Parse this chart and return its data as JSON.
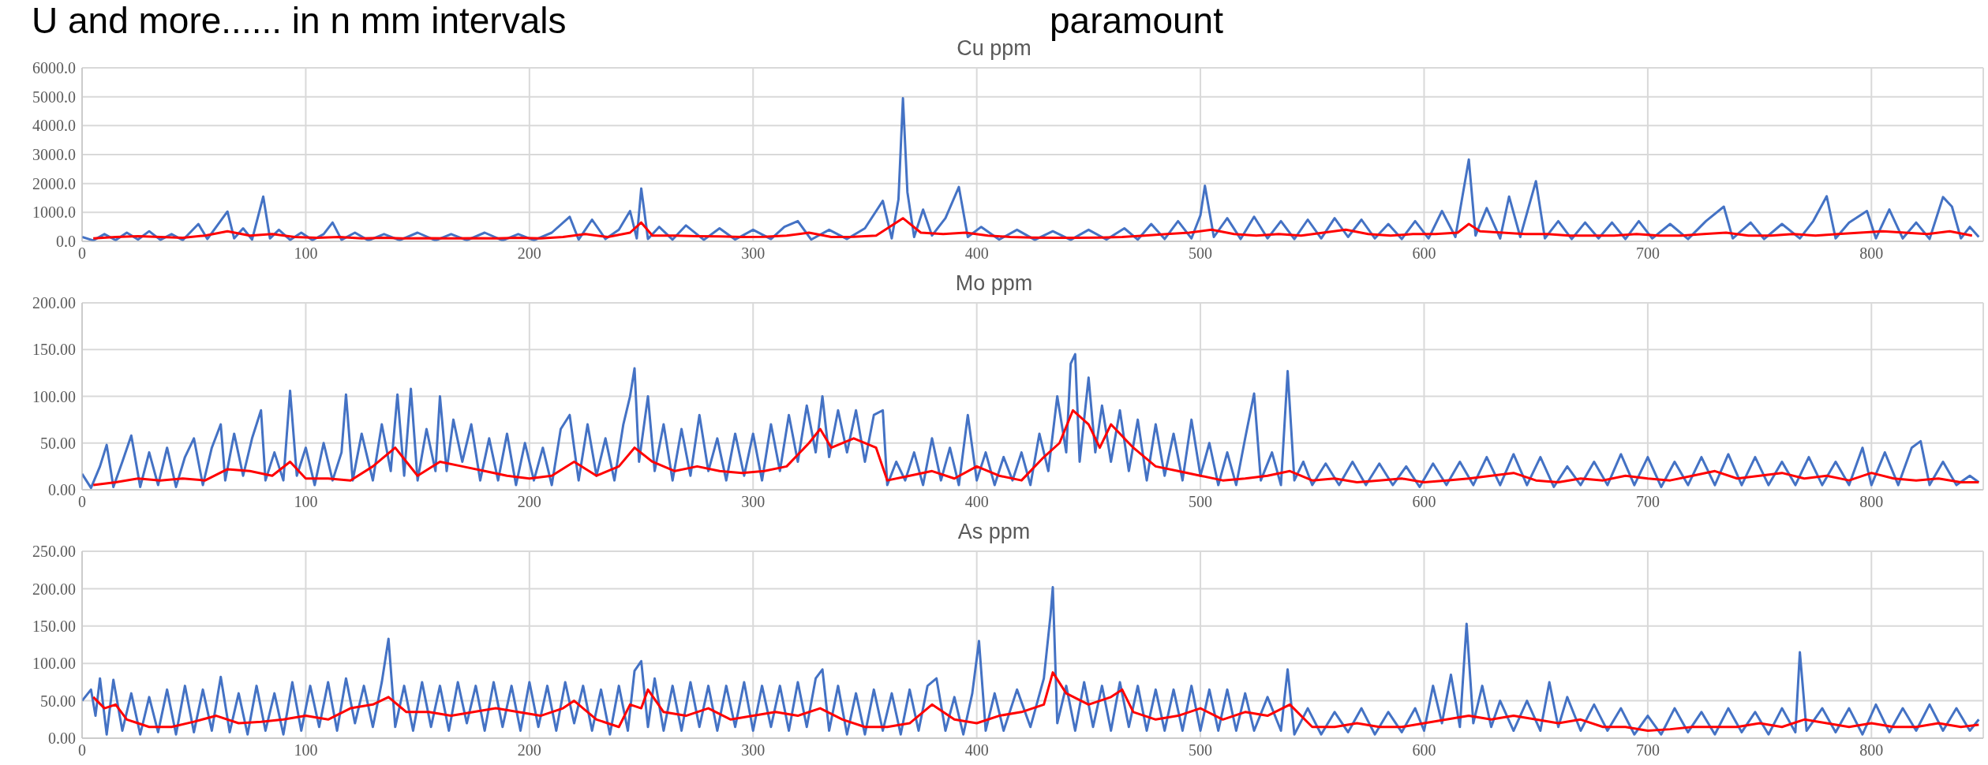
{
  "chart_data": [
    {
      "type": "line",
      "title": "Cu ppm",
      "annotations": [
        "U and more...... in n mm intervals",
        "paramount"
      ],
      "xlim": [
        0,
        850
      ],
      "xticks": [
        0,
        100,
        200,
        300,
        400,
        500,
        600,
        700,
        800
      ],
      "ylim": [
        0,
        6000
      ],
      "yticks": [
        {
          "value": 0,
          "label": "0.0"
        },
        {
          "value": 1000,
          "label": "1000.0"
        },
        {
          "value": 2000,
          "label": "2000.0"
        },
        {
          "value": 3000,
          "label": "3000.0"
        },
        {
          "value": 4000,
          "label": "4000.0"
        },
        {
          "value": 5000,
          "label": "5000.0"
        },
        {
          "value": 6000,
          "label": "6000.0"
        }
      ],
      "grid": true,
      "series": [
        {
          "color": "#4472c4",
          "x": [
            0,
            5,
            10,
            15,
            20,
            25,
            30,
            35,
            40,
            45,
            52,
            56,
            60,
            65,
            68,
            72,
            76,
            81,
            84,
            88,
            93,
            98,
            103,
            108,
            112,
            116,
            122,
            128,
            135,
            142,
            150,
            158,
            165,
            172,
            180,
            188,
            195,
            202,
            210,
            218,
            222,
            228,
            234,
            240,
            245,
            248,
            250,
            253,
            258,
            264,
            270,
            278,
            285,
            292,
            300,
            308,
            314,
            320,
            326,
            334,
            342,
            350,
            358,
            362,
            365,
            367,
            369,
            372,
            376,
            380,
            386,
            392,
            396,
            402,
            410,
            418,
            426,
            434,
            442,
            450,
            458,
            466,
            472,
            478,
            484,
            490,
            496,
            500,
            502,
            506,
            512,
            518,
            524,
            530,
            536,
            542,
            548,
            554,
            560,
            566,
            572,
            578,
            584,
            590,
            596,
            602,
            608,
            614,
            620,
            623,
            628,
            634,
            638,
            643,
            650,
            654,
            660,
            666,
            672,
            678,
            684,
            690,
            696,
            702,
            710,
            718,
            726,
            734,
            738,
            746,
            752,
            760,
            768,
            774,
            780,
            784,
            790,
            798,
            802,
            808,
            814,
            820,
            826,
            832,
            836,
            840,
            844,
            848
          ],
          "values": [
            150,
            30,
            250,
            40,
            300,
            60,
            350,
            50,
            250,
            40,
            600,
            80,
            500,
            1030,
            100,
            450,
            60,
            1550,
            100,
            400,
            50,
            300,
            40,
            250,
            650,
            50,
            300,
            30,
            250,
            40,
            300,
            30,
            250,
            40,
            300,
            30,
            250,
            40,
            300,
            850,
            60,
            750,
            80,
            400,
            1050,
            100,
            1830,
            80,
            500,
            60,
            550,
            50,
            450,
            60,
            400,
            80,
            500,
            700,
            60,
            400,
            80,
            450,
            1400,
            100,
            1450,
            4950,
            1700,
            150,
            1100,
            200,
            800,
            1880,
            150,
            500,
            60,
            400,
            50,
            350,
            50,
            400,
            60,
            450,
            60,
            600,
            80,
            700,
            100,
            900,
            1920,
            150,
            800,
            80,
            850,
            100,
            700,
            80,
            750,
            100,
            800,
            150,
            750,
            100,
            600,
            80,
            700,
            100,
            1050,
            150,
            2830,
            200,
            1150,
            100,
            1550,
            150,
            2080,
            100,
            700,
            80,
            650,
            100,
            650,
            80,
            700,
            100,
            600,
            80,
            700,
            1200,
            100,
            650,
            80,
            600,
            100,
            700,
            1560,
            100,
            650,
            1050,
            100,
            1100,
            100,
            650,
            80,
            1530,
            1200,
            100,
            500,
            150
          ]
        },
        {
          "color": "#ff0000",
          "x": [
            5,
            15,
            25,
            35,
            45,
            55,
            65,
            75,
            85,
            95,
            105,
            115,
            125,
            135,
            145,
            155,
            165,
            175,
            185,
            195,
            205,
            215,
            225,
            235,
            245,
            250,
            255,
            265,
            275,
            285,
            295,
            305,
            315,
            325,
            335,
            345,
            355,
            367,
            375,
            385,
            395,
            405,
            415,
            425,
            435,
            445,
            455,
            465,
            475,
            485,
            495,
            505,
            515,
            525,
            535,
            545,
            555,
            565,
            575,
            585,
            595,
            605,
            615,
            620,
            625,
            635,
            645,
            655,
            665,
            675,
            685,
            695,
            705,
            715,
            725,
            735,
            745,
            755,
            765,
            775,
            785,
            795,
            805,
            815,
            825,
            835,
            845
          ],
          "values": [
            100,
            150,
            180,
            150,
            120,
            200,
            350,
            200,
            250,
            150,
            120,
            150,
            100,
            120,
            100,
            110,
            100,
            110,
            100,
            120,
            100,
            150,
            250,
            150,
            300,
            650,
            200,
            200,
            180,
            170,
            150,
            160,
            200,
            300,
            150,
            160,
            200,
            800,
            300,
            250,
            300,
            200,
            150,
            130,
            120,
            120,
            130,
            150,
            200,
            250,
            300,
            400,
            250,
            200,
            250,
            200,
            300,
            400,
            250,
            200,
            250,
            250,
            300,
            600,
            350,
            300,
            250,
            250,
            200,
            200,
            200,
            250,
            200,
            200,
            250,
            300,
            200,
            200,
            250,
            200,
            250,
            300,
            350,
            300,
            250,
            350,
            200
          ]
        }
      ]
    },
    {
      "type": "line",
      "title": "Mo ppm",
      "xlim": [
        0,
        850
      ],
      "xticks": [
        0,
        100,
        200,
        300,
        400,
        500,
        600,
        700,
        800
      ],
      "ylim": [
        0,
        200
      ],
      "yticks": [
        {
          "value": 0,
          "label": "0.00"
        },
        {
          "value": 50,
          "label": "50.00"
        },
        {
          "value": 100,
          "label": "100.00"
        },
        {
          "value": 150,
          "label": "150.00"
        },
        {
          "value": 200,
          "label": "200.00"
        }
      ],
      "grid": true,
      "series": [
        {
          "color": "#4472c4",
          "x": [
            0,
            4,
            8,
            11,
            14,
            18,
            22,
            26,
            30,
            34,
            38,
            42,
            46,
            50,
            54,
            58,
            62,
            64,
            68,
            72,
            76,
            80,
            82,
            86,
            90,
            93,
            96,
            100,
            104,
            108,
            112,
            116,
            118,
            121,
            125,
            130,
            134,
            138,
            141,
            144,
            147,
            150,
            154,
            158,
            160,
            163,
            166,
            170,
            174,
            178,
            182,
            186,
            190,
            194,
            198,
            202,
            206,
            210,
            214,
            218,
            222,
            226,
            230,
            234,
            238,
            242,
            245,
            247,
            249,
            253,
            256,
            260,
            264,
            268,
            272,
            276,
            280,
            284,
            288,
            292,
            296,
            300,
            304,
            308,
            312,
            316,
            320,
            324,
            328,
            331,
            334,
            338,
            342,
            346,
            350,
            354,
            358,
            360,
            364,
            368,
            372,
            376,
            380,
            384,
            388,
            392,
            396,
            400,
            404,
            408,
            412,
            416,
            420,
            424,
            428,
            432,
            436,
            440,
            442,
            444,
            446,
            450,
            453,
            456,
            460,
            464,
            468,
            472,
            476,
            480,
            484,
            488,
            492,
            496,
            500,
            504,
            508,
            512,
            516,
            520,
            524,
            527,
            532,
            536,
            539,
            542,
            546,
            550,
            556,
            562,
            568,
            574,
            580,
            586,
            592,
            598,
            604,
            610,
            616,
            622,
            628,
            634,
            640,
            646,
            652,
            658,
            664,
            670,
            676,
            682,
            688,
            694,
            700,
            706,
            712,
            718,
            724,
            730,
            736,
            742,
            748,
            754,
            760,
            766,
            772,
            778,
            784,
            790,
            796,
            800,
            806,
            812,
            818,
            822,
            826,
            832,
            838,
            844,
            848
          ],
          "values": [
            17,
            2,
            25,
            48,
            3,
            30,
            58,
            3,
            40,
            5,
            45,
            3,
            35,
            55,
            5,
            45,
            70,
            10,
            60,
            15,
            55,
            85,
            10,
            40,
            10,
            106,
            15,
            45,
            5,
            50,
            10,
            40,
            102,
            10,
            60,
            10,
            70,
            20,
            102,
            15,
            108,
            10,
            65,
            20,
            100,
            20,
            75,
            30,
            70,
            10,
            55,
            10,
            60,
            5,
            50,
            10,
            45,
            5,
            65,
            80,
            10,
            70,
            15,
            55,
            10,
            70,
            100,
            130,
            30,
            100,
            20,
            70,
            10,
            65,
            15,
            80,
            20,
            55,
            10,
            60,
            15,
            60,
            10,
            70,
            20,
            80,
            30,
            90,
            40,
            100,
            35,
            85,
            40,
            85,
            30,
            80,
            85,
            5,
            30,
            10,
            40,
            5,
            55,
            10,
            45,
            5,
            80,
            10,
            40,
            5,
            35,
            10,
            40,
            5,
            60,
            20,
            100,
            40,
            135,
            145,
            30,
            120,
            40,
            90,
            30,
            85,
            20,
            75,
            10,
            70,
            15,
            60,
            10,
            75,
            15,
            50,
            5,
            40,
            5,
            55,
            103,
            10,
            40,
            5,
            127,
            10,
            30,
            5,
            28,
            5,
            30,
            5,
            28,
            5,
            25,
            3,
            28,
            5,
            30,
            5,
            35,
            5,
            38,
            5,
            35,
            3,
            25,
            5,
            30,
            5,
            38,
            5,
            35,
            3,
            30,
            5,
            35,
            5,
            38,
            5,
            35,
            5,
            30,
            5,
            35,
            5,
            30,
            5,
            45,
            5,
            40,
            5,
            45,
            52,
            5,
            30,
            5,
            15,
            8
          ]
        },
        {
          "color": "#ff0000",
          "x": [
            5,
            15,
            25,
            35,
            45,
            55,
            65,
            75,
            85,
            93,
            100,
            110,
            120,
            130,
            140,
            150,
            160,
            170,
            180,
            190,
            200,
            210,
            220,
            230,
            240,
            247,
            255,
            265,
            275,
            285,
            295,
            305,
            315,
            325,
            330,
            335,
            345,
            355,
            360,
            370,
            380,
            390,
            400,
            410,
            420,
            430,
            437,
            443,
            450,
            455,
            460,
            470,
            480,
            490,
            500,
            510,
            520,
            530,
            540,
            550,
            560,
            570,
            580,
            590,
            600,
            610,
            620,
            630,
            640,
            650,
            660,
            670,
            680,
            690,
            700,
            710,
            720,
            730,
            740,
            750,
            760,
            770,
            780,
            790,
            800,
            810,
            820,
            830,
            840,
            848
          ],
          "values": [
            5,
            8,
            12,
            10,
            12,
            10,
            22,
            20,
            15,
            30,
            12,
            12,
            10,
            25,
            45,
            15,
            30,
            25,
            20,
            15,
            12,
            15,
            30,
            15,
            25,
            45,
            30,
            20,
            25,
            20,
            18,
            20,
            25,
            50,
            65,
            45,
            55,
            45,
            10,
            15,
            20,
            12,
            25,
            15,
            10,
            35,
            50,
            85,
            70,
            45,
            70,
            45,
            25,
            20,
            15,
            10,
            12,
            15,
            20,
            10,
            12,
            8,
            10,
            12,
            8,
            10,
            12,
            15,
            18,
            10,
            8,
            12,
            10,
            15,
            12,
            10,
            15,
            20,
            12,
            15,
            18,
            12,
            15,
            10,
            18,
            12,
            10,
            12,
            8,
            8
          ]
        }
      ]
    },
    {
      "type": "line",
      "title": "As ppm",
      "xlim": [
        0,
        850
      ],
      "xticks": [
        0,
        100,
        200,
        300,
        400,
        500,
        600,
        700,
        800
      ],
      "ylim": [
        0,
        250
      ],
      "yticks": [
        {
          "value": 0,
          "label": "0.00"
        },
        {
          "value": 50,
          "label": "50.00"
        },
        {
          "value": 100,
          "label": "100.00"
        },
        {
          "value": 150,
          "label": "150.00"
        },
        {
          "value": 200,
          "label": "200.00"
        },
        {
          "value": 250,
          "label": "250.00"
        }
      ],
      "grid": true,
      "series": [
        {
          "color": "#4472c4",
          "x": [
            0,
            4,
            6,
            8,
            11,
            14,
            18,
            22,
            26,
            30,
            34,
            38,
            42,
            46,
            50,
            54,
            58,
            62,
            66,
            70,
            74,
            78,
            82,
            86,
            90,
            94,
            98,
            102,
            106,
            110,
            114,
            118,
            122,
            126,
            130,
            134,
            137,
            140,
            144,
            148,
            152,
            156,
            160,
            164,
            168,
            172,
            176,
            180,
            184,
            188,
            192,
            196,
            200,
            204,
            208,
            212,
            216,
            220,
            224,
            228,
            232,
            236,
            240,
            244,
            247,
            250,
            253,
            256,
            260,
            264,
            268,
            272,
            276,
            280,
            284,
            288,
            292,
            296,
            300,
            304,
            308,
            312,
            316,
            320,
            324,
            328,
            331,
            334,
            338,
            342,
            346,
            350,
            354,
            358,
            362,
            366,
            370,
            374,
            378,
            382,
            386,
            390,
            394,
            398,
            401,
            404,
            408,
            412,
            418,
            424,
            430,
            433,
            434,
            436,
            440,
            444,
            448,
            452,
            456,
            460,
            464,
            468,
            472,
            476,
            480,
            484,
            488,
            492,
            496,
            500,
            504,
            508,
            512,
            516,
            520,
            524,
            530,
            536,
            539,
            542,
            548,
            554,
            560,
            566,
            572,
            578,
            584,
            590,
            596,
            600,
            604,
            608,
            612,
            616,
            619,
            622,
            626,
            630,
            634,
            640,
            646,
            652,
            656,
            660,
            664,
            670,
            676,
            682,
            688,
            694,
            700,
            706,
            712,
            718,
            724,
            730,
            736,
            742,
            748,
            754,
            760,
            766,
            768,
            771,
            778,
            784,
            790,
            796,
            802,
            808,
            814,
            820,
            826,
            832,
            838,
            844,
            848
          ],
          "values": [
            50,
            65,
            30,
            80,
            5,
            78,
            10,
            60,
            5,
            55,
            8,
            65,
            5,
            70,
            8,
            65,
            10,
            82,
            8,
            60,
            5,
            70,
            10,
            60,
            5,
            75,
            10,
            70,
            15,
            75,
            10,
            80,
            20,
            70,
            15,
            75,
            133,
            15,
            70,
            10,
            75,
            15,
            70,
            10,
            75,
            20,
            70,
            10,
            75,
            15,
            70,
            10,
            75,
            15,
            70,
            10,
            75,
            20,
            70,
            10,
            65,
            5,
            70,
            10,
            90,
            103,
            15,
            80,
            10,
            70,
            10,
            75,
            15,
            70,
            10,
            70,
            15,
            75,
            10,
            70,
            15,
            70,
            10,
            75,
            15,
            80,
            92,
            10,
            70,
            5,
            60,
            5,
            65,
            10,
            60,
            5,
            65,
            10,
            70,
            80,
            10,
            55,
            5,
            60,
            130,
            10,
            60,
            10,
            65,
            15,
            80,
            165,
            202,
            20,
            70,
            10,
            75,
            15,
            70,
            10,
            75,
            15,
            70,
            10,
            65,
            10,
            65,
            10,
            70,
            10,
            65,
            10,
            65,
            10,
            60,
            10,
            55,
            10,
            92,
            5,
            40,
            5,
            35,
            8,
            40,
            5,
            35,
            8,
            40,
            10,
            70,
            20,
            85,
            15,
            153,
            20,
            70,
            15,
            50,
            10,
            50,
            10,
            75,
            15,
            55,
            10,
            45,
            10,
            40,
            5,
            30,
            5,
            40,
            8,
            35,
            5,
            40,
            8,
            35,
            5,
            40,
            8,
            115,
            10,
            40,
            8,
            40,
            5,
            45,
            8,
            40,
            10,
            45,
            10,
            40,
            10,
            25
          ]
        },
        {
          "color": "#ff0000",
          "x": [
            5,
            10,
            15,
            20,
            25,
            30,
            40,
            50,
            60,
            70,
            80,
            90,
            100,
            110,
            120,
            130,
            137,
            145,
            155,
            165,
            175,
            185,
            195,
            205,
            215,
            220,
            230,
            240,
            245,
            250,
            253,
            260,
            270,
            280,
            290,
            300,
            310,
            320,
            330,
            340,
            350,
            360,
            370,
            380,
            390,
            400,
            410,
            420,
            430,
            434,
            440,
            450,
            460,
            465,
            470,
            480,
            490,
            500,
            510,
            520,
            530,
            540,
            550,
            560,
            570,
            580,
            590,
            600,
            610,
            620,
            630,
            640,
            650,
            660,
            670,
            680,
            690,
            700,
            710,
            720,
            730,
            740,
            750,
            760,
            770,
            780,
            790,
            800,
            810,
            820,
            830,
            840,
            848
          ],
          "values": [
            55,
            40,
            45,
            25,
            20,
            15,
            15,
            22,
            30,
            20,
            22,
            25,
            30,
            25,
            40,
            45,
            55,
            35,
            35,
            30,
            35,
            40,
            35,
            30,
            40,
            50,
            25,
            15,
            45,
            40,
            65,
            35,
            30,
            40,
            25,
            30,
            35,
            30,
            40,
            25,
            15,
            15,
            20,
            45,
            25,
            20,
            30,
            35,
            45,
            88,
            60,
            45,
            55,
            65,
            35,
            25,
            30,
            40,
            25,
            35,
            30,
            45,
            15,
            15,
            20,
            15,
            15,
            20,
            25,
            30,
            25,
            30,
            25,
            20,
            25,
            15,
            15,
            10,
            12,
            15,
            15,
            15,
            20,
            15,
            25,
            20,
            15,
            20,
            15,
            15,
            20,
            15,
            18
          ]
        }
      ]
    }
  ]
}
